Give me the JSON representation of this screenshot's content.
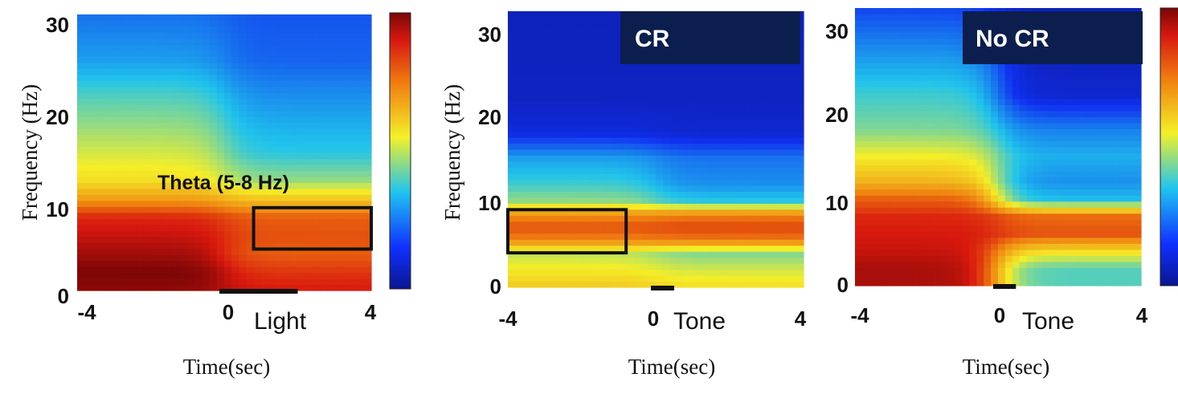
{
  "colors": {
    "dark_blue": "#0c1c8c",
    "blue": "#1e4fe0",
    "cyan": "#27c8e8",
    "yellow": "#f2ee28",
    "orange": "#f08a10",
    "red": "#d8180e",
    "dark_red": "#8a0808",
    "banner_bg": "#0b1e4e",
    "box": "#111111"
  },
  "chart_data": [
    {
      "type": "heatmap",
      "ylabel": "Frequency (Hz)",
      "xlabel": "Time(sec)",
      "x_ticks": [
        "-4",
        "0",
        "4"
      ],
      "y_ticks": [
        "0",
        "10",
        "20",
        "30"
      ],
      "xlim": [
        -4,
        4
      ],
      "ylim": [
        0,
        30
      ],
      "stimulus_label": "Light",
      "stimulus_bar": [
        0,
        2
      ],
      "annotation": "Theta (5-8 Hz)",
      "box": {
        "x": [
          0.8,
          4
        ],
        "y": [
          4.5,
          9
        ]
      },
      "colorbar": true,
      "banner": "",
      "profile_early": [
        [
          0,
          0.98
        ],
        [
          2,
          1.0
        ],
        [
          4,
          0.96
        ],
        [
          6,
          0.92
        ],
        [
          8,
          0.88
        ],
        [
          10,
          0.7
        ],
        [
          12,
          0.58
        ],
        [
          15,
          0.52
        ],
        [
          18,
          0.46
        ],
        [
          21,
          0.4
        ],
        [
          25,
          0.3
        ],
        [
          30,
          0.24
        ]
      ],
      "profile_late": [
        [
          0,
          0.9
        ],
        [
          2,
          0.86
        ],
        [
          4,
          0.8
        ],
        [
          6,
          0.82
        ],
        [
          8,
          0.8
        ],
        [
          10,
          0.62
        ],
        [
          12,
          0.46
        ],
        [
          15,
          0.36
        ],
        [
          18,
          0.32
        ],
        [
          21,
          0.28
        ],
        [
          25,
          0.22
        ],
        [
          30,
          0.2
        ]
      ]
    },
    {
      "type": "heatmap",
      "ylabel": "Frequency (Hz)",
      "xlabel": "Time(sec)",
      "x_ticks": [
        "-4",
        "0",
        "4"
      ],
      "y_ticks": [
        "0",
        "10",
        "20",
        "30"
      ],
      "xlim": [
        -4,
        4
      ],
      "ylim": [
        0,
        32
      ],
      "stimulus_label": "Tone",
      "stimulus_bar": [
        0,
        0.5
      ],
      "annotation": "",
      "box": {
        "x": [
          -4,
          -0.8
        ],
        "y": [
          4,
          9
        ]
      },
      "colorbar": false,
      "banner": "CR",
      "profile_early": [
        [
          0,
          0.62
        ],
        [
          2,
          0.56
        ],
        [
          4,
          0.5
        ],
        [
          5.5,
          0.74
        ],
        [
          7,
          0.82
        ],
        [
          8.5,
          0.72
        ],
        [
          10,
          0.46
        ],
        [
          12,
          0.38
        ],
        [
          15,
          0.3
        ],
        [
          18,
          0.12
        ],
        [
          22,
          0.08
        ],
        [
          32,
          0.07
        ]
      ],
      "profile_late": [
        [
          0,
          0.58
        ],
        [
          2,
          0.52
        ],
        [
          4,
          0.44
        ],
        [
          5.5,
          0.76
        ],
        [
          7,
          0.84
        ],
        [
          8.5,
          0.74
        ],
        [
          10,
          0.36
        ],
        [
          12,
          0.28
        ],
        [
          15,
          0.24
        ],
        [
          18,
          0.1
        ],
        [
          22,
          0.08
        ],
        [
          32,
          0.07
        ]
      ]
    },
    {
      "type": "heatmap",
      "ylabel": "",
      "xlabel": "Time(sec)",
      "x_ticks": [
        "-4",
        "0",
        "4"
      ],
      "y_ticks": [
        "0",
        "10",
        "20",
        "30"
      ],
      "xlim": [
        -4,
        4
      ],
      "ylim": [
        0,
        32
      ],
      "stimulus_label": "Tone",
      "stimulus_bar": [
        0,
        0.5
      ],
      "annotation": "",
      "box": null,
      "colorbar": true,
      "banner": "No CR",
      "profile_early": [
        [
          0,
          0.95
        ],
        [
          2,
          0.95
        ],
        [
          4,
          0.92
        ],
        [
          6,
          0.9
        ],
        [
          8,
          0.88
        ],
        [
          10,
          0.8
        ],
        [
          12,
          0.66
        ],
        [
          15,
          0.55
        ],
        [
          18,
          0.44
        ],
        [
          22,
          0.38
        ],
        [
          26,
          0.3
        ],
        [
          32,
          0.18
        ]
      ],
      "profile_late": [
        [
          0,
          0.4
        ],
        [
          2,
          0.4
        ],
        [
          4,
          0.58
        ],
        [
          6,
          0.82
        ],
        [
          8,
          0.78
        ],
        [
          10,
          0.34
        ],
        [
          12,
          0.28
        ],
        [
          15,
          0.32
        ],
        [
          18,
          0.26
        ],
        [
          22,
          0.1
        ],
        [
          26,
          0.08
        ],
        [
          32,
          0.07
        ]
      ]
    }
  ]
}
